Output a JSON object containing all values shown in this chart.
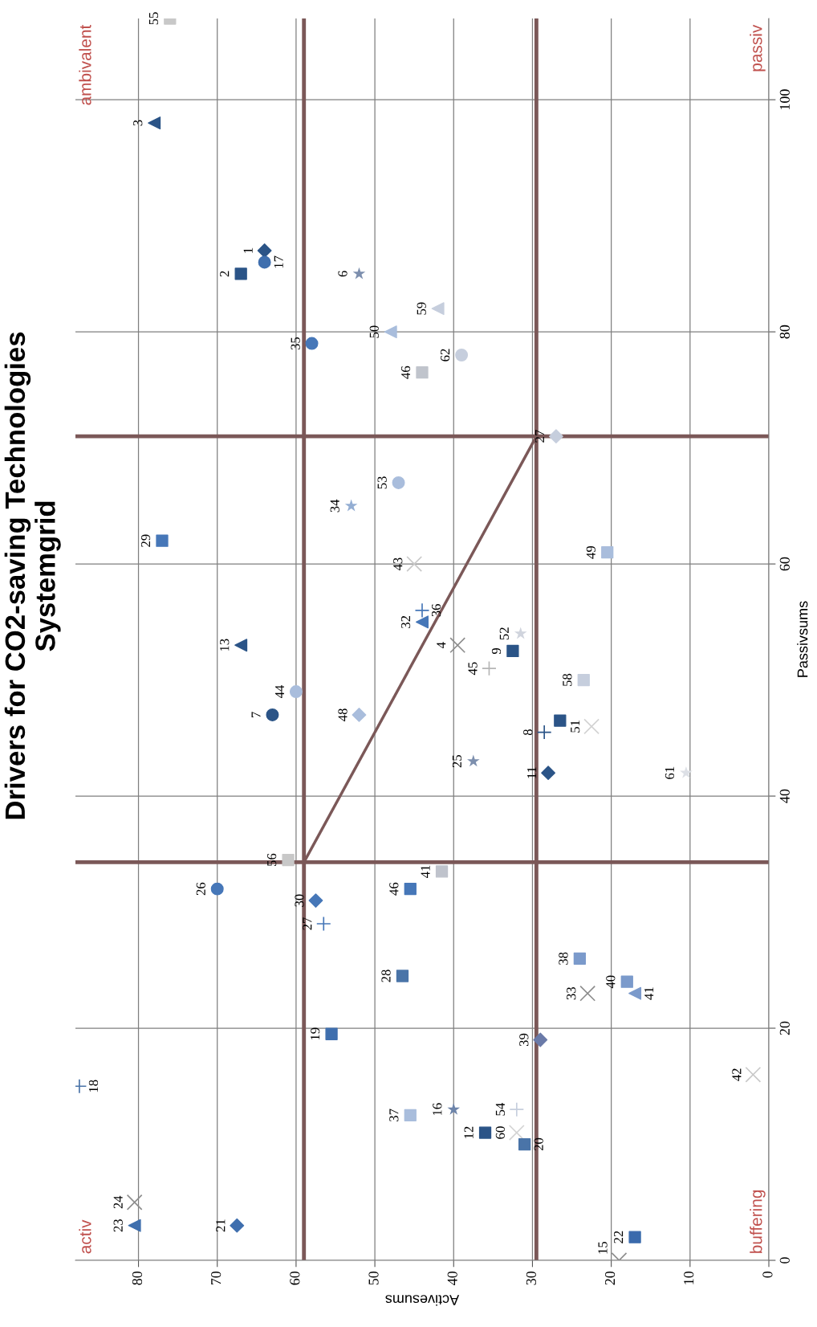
{
  "chart_data": {
    "type": "scatter",
    "title": "Drivers for CO2-saving Technologies\nSystemgrid",
    "xlabel": "Activesums",
    "ylabel": "Passivsums",
    "xlim": [
      88,
      0
    ],
    "ylim": [
      0,
      107
    ],
    "xticks": [
      0,
      10,
      20,
      30,
      40,
      50,
      60,
      70,
      80
    ],
    "yticks": [
      0,
      20,
      40,
      60,
      80,
      100
    ],
    "grid": true,
    "legend": false,
    "series": [
      {
        "type": "scatter",
        "marker": "triangle",
        "x": [
          78,
          67,
          80.5,
          44,
          48,
          42,
          17
        ],
        "values": [
          98,
          53,
          3,
          55,
          80,
          82,
          23
        ],
        "colors": [
          "#2b5487",
          "#2b5487",
          "#3f6fae",
          "#4677b8",
          "#a9bddc",
          "#c6cedd",
          "#7b9acb"
        ]
      },
      {
        "type": "scatter",
        "marker": "square",
        "x": [
          67,
          36,
          17,
          45.5,
          18,
          23.5,
          20.5
        ],
        "values": [
          85,
          11,
          2,
          32,
          24,
          50,
          61
        ],
        "colors": [
          "#2b5487",
          "#2b5487",
          "#3a6aac",
          "#4677b8",
          "#7b9acb",
          "#c6cedd",
          "#a9bddc"
        ]
      },
      {
        "type": "scatter",
        "marker": "diamond",
        "x": [
          64,
          28,
          67.5,
          57.5,
          29,
          52,
          27
        ],
        "values": [
          87,
          42,
          3,
          31,
          19,
          47,
          71
        ],
        "colors": [
          "#2b5487",
          "#2b5487",
          "#3f6fae",
          "#4677b8",
          "#6a7aa8",
          "#a9bddc",
          "#c6cedd"
        ]
      },
      {
        "type": "scatter",
        "marker": "circle",
        "x": [
          64,
          63,
          70,
          58,
          60,
          47,
          39
        ],
        "values": [
          86,
          47,
          32,
          79,
          49,
          67,
          78
        ],
        "colors": [
          "#3f6fae",
          "#2b5487",
          "#4677b8",
          "#4677b8",
          "#a9bddc",
          "#a9bddc",
          "#c6cedd"
        ]
      },
      {
        "type": "scatter",
        "marker": "plus",
        "x": [
          87.5,
          56.5,
          44,
          35.5,
          28.5,
          32
        ],
        "values": [
          15,
          29,
          56,
          51,
          45.5,
          13
        ],
        "colors": [
          "#4a74a8",
          "#4677b8",
          "#4677b8",
          "#b5b5b5",
          "#2b5487",
          "#c6cedd"
        ]
      },
      {
        "type": "scatter",
        "marker": "cross",
        "x": [
          80.5,
          39.5,
          45,
          23,
          19,
          32,
          2,
          22.5
        ],
        "values": [
          5,
          53,
          60,
          23,
          0,
          11,
          16,
          46
        ],
        "colors": [
          "#8d8d8d",
          "#8d8d8d",
          "#c8c8c8",
          "#8d8d8d",
          "#8d8d8d",
          "#d3d3d3",
          "#c8c8c8",
          "#d3d3d3"
        ]
      },
      {
        "type": "scatter",
        "marker": "star",
        "x": [
          52,
          53,
          40,
          37.5,
          31.5,
          10.5
        ],
        "values": [
          85,
          65,
          13,
          43,
          54,
          42
        ],
        "colors": [
          "#7d8fae",
          "#94aed3",
          "#6d84aa",
          "#7d8fae",
          "#d0d4dd",
          "#dde0e6"
        ]
      },
      {
        "marker": "square",
        "x": [
          76,
          44,
          77,
          61,
          41.5,
          46.5,
          55.5,
          45.5,
          32.5,
          31,
          24,
          26.5
        ],
        "values": [
          107,
          76.5,
          62,
          34.5,
          33.5,
          24.5,
          19.5,
          12.5,
          52.5,
          10,
          26,
          46.5
        ],
        "colors": [
          "#c8c8c8",
          "#c0c4cc",
          "#4677b8",
          "#c8c8c8",
          "#bfc3cc",
          "#4a74a8",
          "#3f6fae",
          "#a9bddc",
          "#2b5487",
          "#4a74a8",
          "#7b9acb",
          "#2b5487"
        ]
      },
      {
        "type": "line",
        "x": [
          59,
          29.5
        ],
        "values": [
          34.3,
          71
        ],
        "color": "#7b5858"
      }
    ],
    "ref_lines": [
      {
        "axis": "x",
        "value": 59,
        "color": "#7b5858"
      },
      {
        "axis": "x",
        "value": 29.5,
        "color": "#7b5858"
      },
      {
        "axis": "y",
        "value": 34.3,
        "color": "#7b5858"
      },
      {
        "axis": "y",
        "value": 71,
        "color": "#7b5858"
      }
    ],
    "annotations": [
      "activ",
      "ambivalent",
      "passiv",
      "buffering",
      {
        "text": "3",
        "x": 78,
        "y": 98
      },
      {
        "text": "13",
        "x": 67,
        "y": 53
      },
      {
        "text": "23",
        "x": 80.5,
        "y": 3
      },
      {
        "text": "32",
        "x": 44,
        "y": 55
      },
      {
        "text": "50",
        "x": 48,
        "y": 80
      },
      {
        "text": "59",
        "x": 42,
        "y": 82
      },
      {
        "text": "41",
        "x": 17,
        "y": 23
      },
      {
        "text": "2",
        "x": 67,
        "y": 85
      },
      {
        "text": "12",
        "x": 36,
        "y": 11
      },
      {
        "text": "22",
        "x": 17,
        "y": 2
      },
      {
        "text": "46",
        "x": 45.5,
        "y": 32
      },
      {
        "text": "40",
        "x": 18,
        "y": 24
      },
      {
        "text": "58",
        "x": 23.5,
        "y": 50
      },
      {
        "text": "49",
        "x": 20.5,
        "y": 61
      },
      {
        "text": "1",
        "x": 64,
        "y": 87
      },
      {
        "text": "11",
        "x": 28,
        "y": 42
      },
      {
        "text": "21",
        "x": 67.5,
        "y": 3
      },
      {
        "text": "30",
        "x": 57.5,
        "y": 31
      },
      {
        "text": "39",
        "x": 29,
        "y": 19
      },
      {
        "text": "48",
        "x": 52,
        "y": 47
      },
      {
        "text": "27",
        "x": 27,
        "y": 71
      },
      {
        "text": "17",
        "x": 64,
        "y": 86
      },
      {
        "text": "7",
        "x": 63,
        "y": 47
      },
      {
        "text": "26",
        "x": 70,
        "y": 32
      },
      {
        "text": "35",
        "x": 58,
        "y": 79
      },
      {
        "text": "44",
        "x": 60,
        "y": 49
      },
      {
        "text": "53",
        "x": 47,
        "y": 67
      },
      {
        "text": "62",
        "x": 39,
        "y": 78
      },
      {
        "text": "18",
        "x": 87.5,
        "y": 15
      },
      {
        "text": "27",
        "x": 56.5,
        "y": 29
      },
      {
        "text": "36",
        "x": 44,
        "y": 56
      },
      {
        "text": "45",
        "x": 35.5,
        "y": 51
      },
      {
        "text": "8",
        "x": 28.5,
        "y": 45.5
      },
      {
        "text": "54",
        "x": 32,
        "y": 13
      },
      {
        "text": "24",
        "x": 80.5,
        "y": 5
      },
      {
        "text": "4",
        "x": 39.5,
        "y": 53
      },
      {
        "text": "43",
        "x": 45,
        "y": 60
      },
      {
        "text": "33",
        "x": 23,
        "y": 23
      },
      {
        "text": "15",
        "x": 19,
        "y": 0
      },
      {
        "text": "60",
        "x": 32,
        "y": 11
      },
      {
        "text": "42",
        "x": 2,
        "y": 16
      },
      {
        "text": "51",
        "x": 22.5,
        "y": 46
      },
      {
        "text": "6",
        "x": 52,
        "y": 85
      },
      {
        "text": "34",
        "x": 53,
        "y": 65
      },
      {
        "text": "16",
        "x": 40,
        "y": 13
      },
      {
        "text": "25",
        "x": 37.5,
        "y": 43
      },
      {
        "text": "52",
        "x": 31.5,
        "y": 54
      },
      {
        "text": "61",
        "x": 10.5,
        "y": 42
      },
      {
        "text": "55",
        "x": 76,
        "y": 107
      },
      {
        "text": "46",
        "x": 44,
        "y": 76.5
      },
      {
        "text": "29",
        "x": 77,
        "y": 62
      },
      {
        "text": "56",
        "x": 61,
        "y": 34.5
      },
      {
        "text": "41",
        "x": 41.5,
        "y": 33.5
      },
      {
        "text": "28",
        "x": 46.5,
        "y": 24.5
      },
      {
        "text": "19",
        "x": 55.5,
        "y": 19.5
      },
      {
        "text": "37",
        "x": 45.5,
        "y": 12.5
      },
      {
        "text": "9",
        "x": 32.5,
        "y": 52.5
      },
      {
        "text": "20",
        "x": 31,
        "y": 10
      },
      {
        "text": "38",
        "x": 24,
        "y": 26
      }
    ]
  }
}
